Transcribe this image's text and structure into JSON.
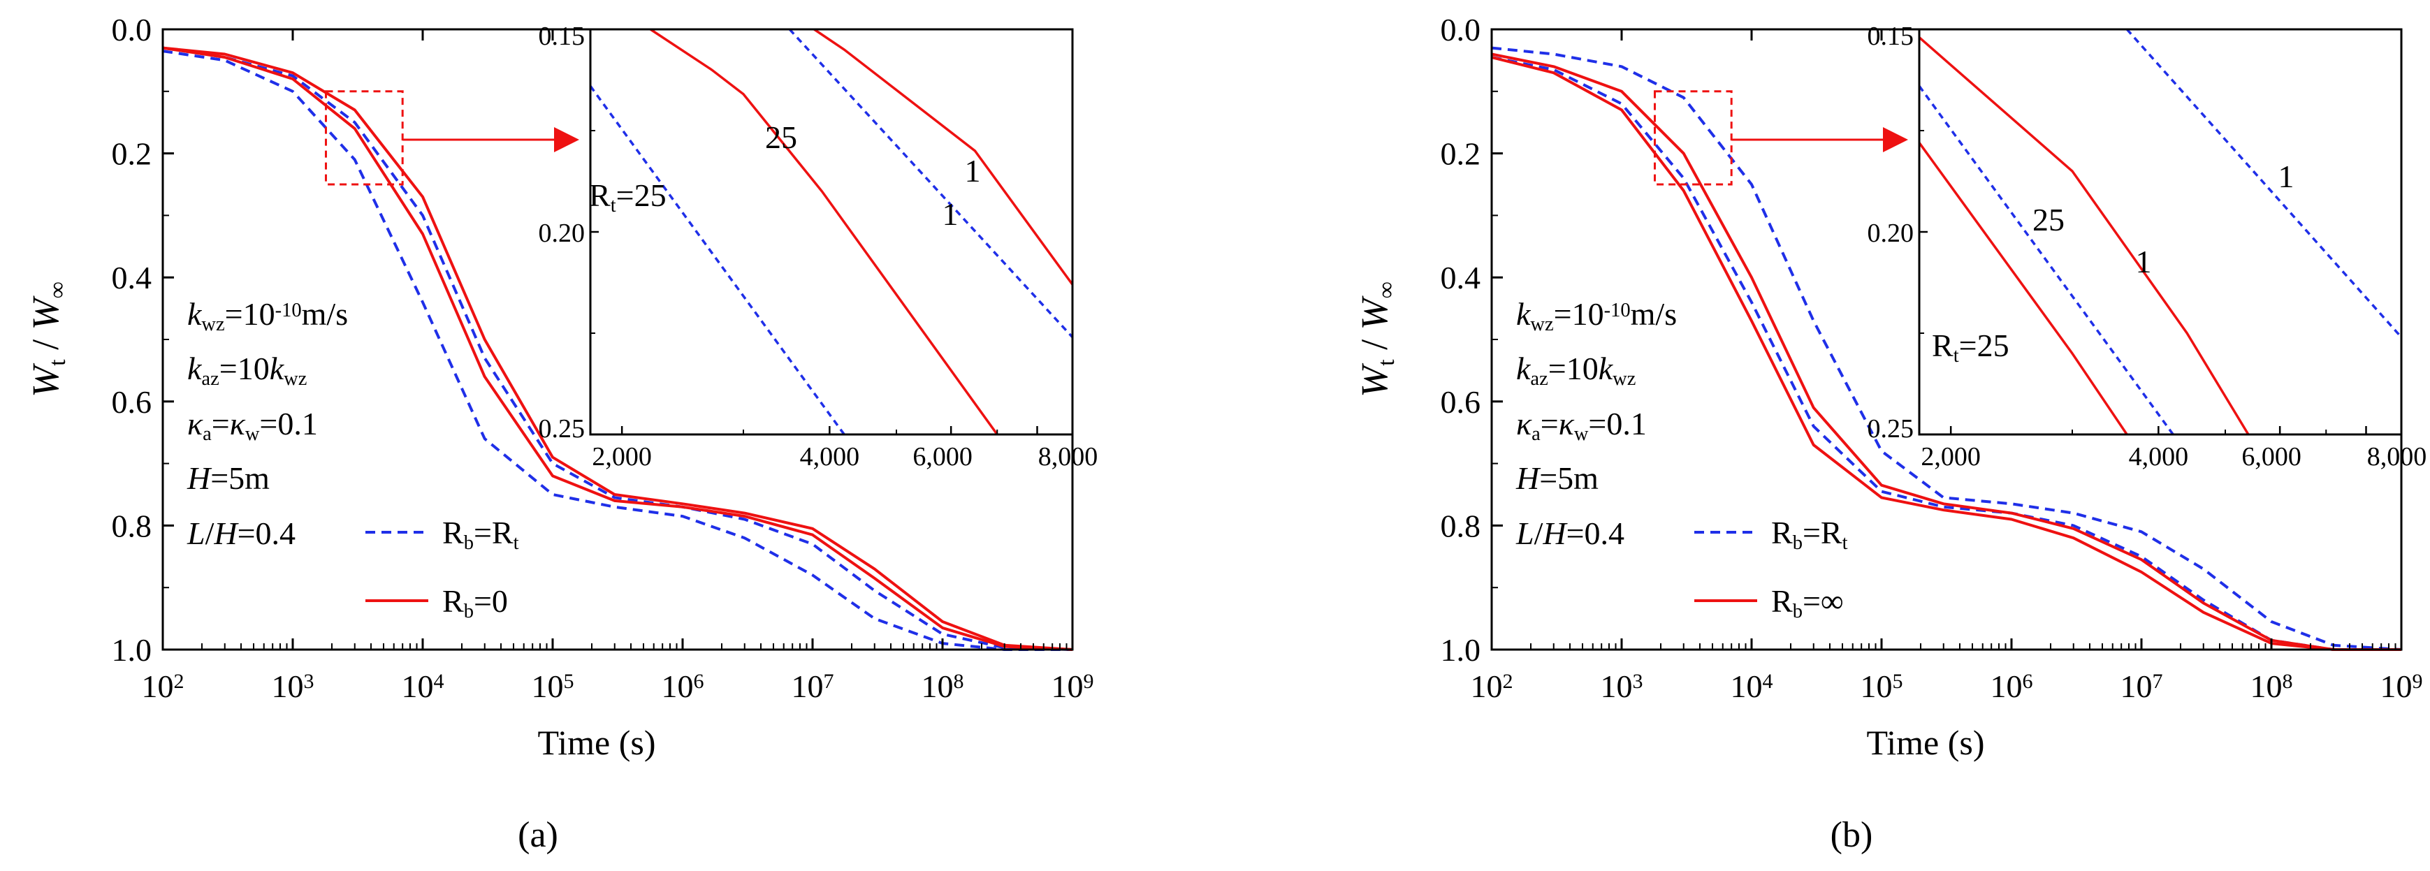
{
  "figure": {
    "labels": [
      "(a)",
      "(b)"
    ],
    "colors": {
      "blue": "#1f2fe8",
      "red": "#ee1111",
      "axis": "#000000"
    }
  },
  "chart_data": [
    {
      "type": "line",
      "panel": "(a)",
      "x_scale": "log",
      "xlim": [
        100,
        1000000000
      ],
      "ylim": [
        0.0,
        1.0
      ],
      "y_inverted": true,
      "xlabel": "Time (s)",
      "ylabel": "Wt / W∞",
      "x_ticks": [
        100,
        1000,
        10000,
        100000,
        1000000,
        10000000,
        100000000,
        1000000000
      ],
      "x_tick_labels": [
        "10^2",
        "10^3",
        "10^4",
        "10^5",
        "10^6",
        "10^7",
        "10^8",
        "10^9"
      ],
      "y_ticks": [
        0.0,
        0.2,
        0.4,
        0.6,
        0.8,
        1.0
      ],
      "y_tick_labels": [
        "0.0",
        "0.2",
        "0.4",
        "0.6",
        "0.8",
        "1.0"
      ],
      "annotations": [
        "kwz=10^-10 m/s",
        "kaz=10 kwz",
        "κa=κw=0.1",
        "H=5m",
        "L/H=0.4"
      ],
      "legend": [
        {
          "label": "Rb=Rt",
          "style": "dashed",
          "color": "#1f2fe8"
        },
        {
          "label": "Rb=0",
          "style": "solid",
          "color": "#ee1111"
        }
      ],
      "series": [
        {
          "name": "Rb=Rt, Rt=25",
          "style": "dashed",
          "color": "#1f2fe8",
          "x": [
            100,
            300,
            1000,
            3000,
            10000,
            30000,
            100000,
            300000,
            1000000,
            3000000,
            10000000,
            30000000,
            100000000,
            300000000,
            1000000000
          ],
          "y": [
            0.035,
            0.05,
            0.1,
            0.21,
            0.44,
            0.66,
            0.75,
            0.77,
            0.785,
            0.82,
            0.88,
            0.95,
            0.99,
            1.0,
            1.0
          ]
        },
        {
          "name": "Rb=Rt, Rt=1",
          "style": "dashed",
          "color": "#1f2fe8",
          "x": [
            100,
            300,
            1000,
            3000,
            10000,
            30000,
            100000,
            300000,
            1000000,
            3000000,
            10000000,
            30000000,
            100000000,
            300000000,
            1000000000
          ],
          "y": [
            0.03,
            0.045,
            0.075,
            0.15,
            0.3,
            0.53,
            0.7,
            0.755,
            0.77,
            0.79,
            0.83,
            0.905,
            0.975,
            0.997,
            1.0
          ]
        },
        {
          "name": "Rb=0, Rt=25",
          "style": "solid",
          "color": "#ee1111",
          "x": [
            100,
            300,
            1000,
            3000,
            10000,
            30000,
            100000,
            300000,
            1000000,
            3000000,
            10000000,
            30000000,
            100000000,
            300000000,
            1000000000
          ],
          "y": [
            0.03,
            0.045,
            0.08,
            0.16,
            0.33,
            0.56,
            0.72,
            0.76,
            0.77,
            0.785,
            0.815,
            0.885,
            0.965,
            0.995,
            1.0
          ]
        },
        {
          "name": "Rb=0, Rt=1",
          "style": "solid",
          "color": "#ee1111",
          "x": [
            100,
            300,
            1000,
            3000,
            10000,
            30000,
            100000,
            300000,
            1000000,
            3000000,
            10000000,
            30000000,
            100000000,
            300000000,
            1000000000
          ],
          "y": [
            0.03,
            0.04,
            0.07,
            0.13,
            0.27,
            0.5,
            0.69,
            0.75,
            0.765,
            0.78,
            0.805,
            0.87,
            0.955,
            0.993,
            1.0
          ]
        }
      ],
      "inset": {
        "x_scale": "log",
        "xlim": [
          1800,
          9000
        ],
        "ylim": [
          0.15,
          0.25
        ],
        "y_inverted": true,
        "x_ticks": [
          2000,
          4000,
          6000,
          8000
        ],
        "x_tick_labels": [
          "2,000",
          "4,000",
          "6,000",
          "8,000"
        ],
        "y_ticks": [
          0.15,
          0.2,
          0.25
        ],
        "y_tick_labels": [
          "0.15",
          "0.20",
          "0.25"
        ],
        "zoom_box": {
          "x": [
            1800,
            7000
          ],
          "y": [
            0.1,
            0.25
          ]
        },
        "labels": [
          {
            "text": "Rt=25",
            "series": "Rb=Rt, Rt=25"
          },
          {
            "text": "25",
            "series": "Rb=0, Rt=25"
          },
          {
            "text": "1",
            "series": "Rb=Rt, Rt=1"
          },
          {
            "text": "1",
            "series": "Rb=0, Rt=1"
          }
        ],
        "series": [
          {
            "name": "Rb=Rt, Rt=25",
            "style": "dashed",
            "color": "#1f2fe8",
            "x": [
              1800,
              4200
            ],
            "y": [
              0.164,
              0.25
            ]
          },
          {
            "name": "Rb=0, Rt=25",
            "style": "solid",
            "color": "#ee1111",
            "x": [
              2200,
              2700,
              3000,
              3900,
              7000
            ],
            "y": [
              0.15,
              0.16,
              0.166,
              0.19,
              0.25
            ]
          },
          {
            "name": "Rb=Rt, Rt=1",
            "style": "dashed",
            "color": "#1f2fe8",
            "x": [
              3500,
              9000
            ],
            "y": [
              0.15,
              0.226
            ]
          },
          {
            "name": "Rb=0, Rt=1",
            "style": "solid",
            "color": "#ee1111",
            "x": [
              3800,
              4200,
              6500,
              9000
            ],
            "y": [
              0.15,
              0.155,
              0.18,
              0.213
            ]
          }
        ]
      }
    },
    {
      "type": "line",
      "panel": "(b)",
      "x_scale": "log",
      "xlim": [
        100,
        1000000000
      ],
      "ylim": [
        0.0,
        1.0
      ],
      "y_inverted": true,
      "xlabel": "Time (s)",
      "ylabel": "Wt / W∞",
      "x_ticks": [
        100,
        1000,
        10000,
        100000,
        1000000,
        10000000,
        100000000,
        1000000000
      ],
      "x_tick_labels": [
        "10^2",
        "10^3",
        "10^4",
        "10^5",
        "10^6",
        "10^7",
        "10^8",
        "10^9"
      ],
      "y_ticks": [
        0.0,
        0.2,
        0.4,
        0.6,
        0.8,
        1.0
      ],
      "y_tick_labels": [
        "0.0",
        "0.2",
        "0.4",
        "0.6",
        "0.8",
        "1.0"
      ],
      "annotations": [
        "kwz=10^-10 m/s",
        "kaz=10 kwz",
        "κa=κw=0.1",
        "H=5m",
        "L/H=0.4"
      ],
      "legend": [
        {
          "label": "Rb=Rt",
          "style": "dashed",
          "color": "#1f2fe8"
        },
        {
          "label": "Rb=∞",
          "style": "solid",
          "color": "#ee1111"
        }
      ],
      "series": [
        {
          "name": "Rb=Rt, Rt=25",
          "style": "dashed",
          "color": "#1f2fe8",
          "x": [
            100,
            300,
            1000,
            3000,
            10000,
            30000,
            100000,
            300000,
            1000000,
            3000000,
            10000000,
            30000000,
            100000000,
            300000000,
            1000000000
          ],
          "y": [
            0.045,
            0.065,
            0.12,
            0.24,
            0.44,
            0.64,
            0.745,
            0.77,
            0.78,
            0.8,
            0.85,
            0.92,
            0.985,
            1.0,
            1.0
          ]
        },
        {
          "name": "Rb=Rt, Rt=1",
          "style": "dashed",
          "color": "#1f2fe8",
          "x": [
            100,
            300,
            1000,
            3000,
            10000,
            30000,
            100000,
            300000,
            1000000,
            3000000,
            10000000,
            30000000,
            100000000,
            300000000,
            1000000000
          ],
          "y": [
            0.03,
            0.04,
            0.06,
            0.11,
            0.25,
            0.47,
            0.68,
            0.755,
            0.765,
            0.78,
            0.81,
            0.87,
            0.955,
            0.993,
            1.0
          ]
        },
        {
          "name": "Rb=∞, Rt=25",
          "style": "solid",
          "color": "#ee1111",
          "x": [
            100,
            300,
            1000,
            3000,
            10000,
            30000,
            100000,
            300000,
            1000000,
            3000000,
            10000000,
            30000000,
            100000000,
            300000000,
            1000000000
          ],
          "y": [
            0.045,
            0.07,
            0.13,
            0.26,
            0.47,
            0.67,
            0.755,
            0.775,
            0.79,
            0.82,
            0.875,
            0.94,
            0.99,
            1.0,
            1.0
          ]
        },
        {
          "name": "Rb=∞, Rt=1",
          "style": "solid",
          "color": "#ee1111",
          "x": [
            100,
            300,
            1000,
            3000,
            10000,
            30000,
            100000,
            300000,
            1000000,
            3000000,
            10000000,
            30000000,
            100000000,
            300000000,
            1000000000
          ],
          "y": [
            0.04,
            0.06,
            0.1,
            0.2,
            0.4,
            0.61,
            0.735,
            0.765,
            0.78,
            0.805,
            0.855,
            0.925,
            0.985,
            1.0,
            1.0
          ]
        }
      ],
      "inset": {
        "x_scale": "log",
        "xlim": [
          1800,
          9000
        ],
        "ylim": [
          0.15,
          0.25
        ],
        "y_inverted": true,
        "x_ticks": [
          2000,
          4000,
          6000,
          8000
        ],
        "x_tick_labels": [
          "2,000",
          "4,000",
          "6,000",
          "8,000"
        ],
        "y_ticks": [
          0.15,
          0.2,
          0.25
        ],
        "y_tick_labels": [
          "0.15",
          "0.20",
          "0.25"
        ],
        "zoom_box": {
          "x": [
            1800,
            7000
          ],
          "y": [
            0.1,
            0.25
          ]
        },
        "labels": [
          {
            "text": "Rt=25",
            "series": "Rb=∞, Rt=25"
          },
          {
            "text": "25",
            "series": "Rb=Rt, Rt=25"
          },
          {
            "text": "1",
            "series": "Rb=∞, Rt=1"
          },
          {
            "text": "1",
            "series": "Rb=Rt, Rt=1"
          }
        ],
        "series": [
          {
            "name": "Rb=∞, Rt=25",
            "style": "solid",
            "color": "#ee1111",
            "x": [
              1800,
              3000,
              3600
            ],
            "y": [
              0.178,
              0.23,
              0.25
            ]
          },
          {
            "name": "Rb=Rt, Rt=25",
            "style": "dashed",
            "color": "#1f2fe8",
            "x": [
              1800,
              4200
            ],
            "y": [
              0.164,
              0.25
            ]
          },
          {
            "name": "Rb=∞, Rt=1",
            "style": "solid",
            "color": "#ee1111",
            "x": [
              1800,
              3000,
              4400,
              5400
            ],
            "y": [
              0.152,
              0.185,
              0.225,
              0.25
            ]
          },
          {
            "name": "Rb=Rt, Rt=1",
            "style": "dashed",
            "color": "#1f2fe8",
            "x": [
              3600,
              9000
            ],
            "y": [
              0.15,
              0.226
            ]
          }
        ]
      }
    }
  ]
}
